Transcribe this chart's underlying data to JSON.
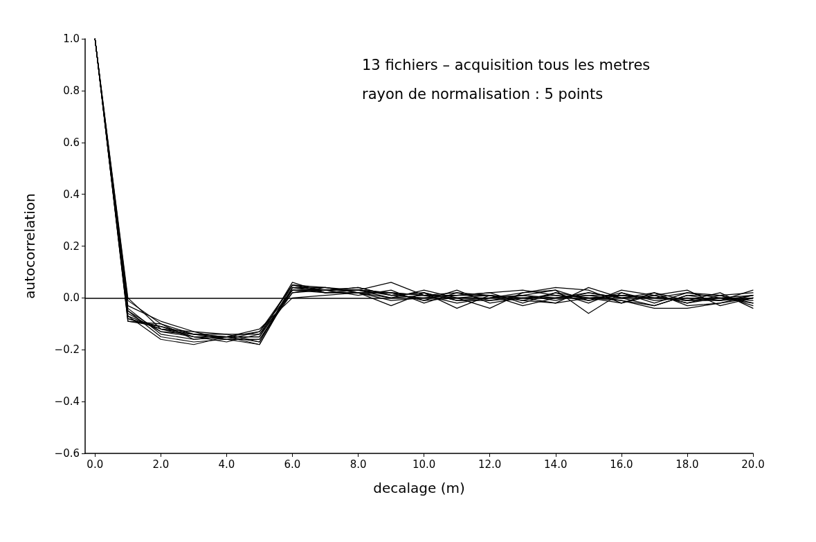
{
  "chart_data": {
    "type": "line",
    "xlabel": "decalage (m)",
    "ylabel": "autocorrelation",
    "annotations": [
      "13 fichiers – acquisition tous les metres",
      "rayon de normalisation : 5 points"
    ],
    "x": [
      0,
      1,
      2,
      3,
      4,
      5,
      6,
      7,
      8,
      9,
      10,
      11,
      12,
      13,
      14,
      15,
      16,
      17,
      18,
      19,
      20
    ],
    "xlim": [
      -0.3,
      20
    ],
    "xticks": [
      {
        "value": 0,
        "label": "0.0"
      },
      {
        "value": 2,
        "label": "2.0"
      },
      {
        "value": 4,
        "label": "4.0"
      },
      {
        "value": 6,
        "label": "6.0"
      },
      {
        "value": 8,
        "label": "8.0"
      },
      {
        "value": 10,
        "label": "10.0"
      },
      {
        "value": 12,
        "label": "12.0"
      },
      {
        "value": 14,
        "label": "14.0"
      },
      {
        "value": 16,
        "label": "16.0"
      },
      {
        "value": 18,
        "label": "18.0"
      },
      {
        "value": 20,
        "label": "20.0"
      }
    ],
    "ylim": [
      -0.6,
      1.0
    ],
    "yticks": [
      {
        "value": -0.6,
        "label": "−0.6"
      },
      {
        "value": -0.4,
        "label": "−0.4"
      },
      {
        "value": -0.2,
        "label": "−0.2"
      },
      {
        "value": 0,
        "label": "0.0"
      },
      {
        "value": 0.2,
        "label": "0.2"
      },
      {
        "value": 0.4,
        "label": "0.4"
      },
      {
        "value": 0.6,
        "label": "0.6"
      },
      {
        "value": 0.8,
        "label": "0.8"
      },
      {
        "value": 1.0,
        "label": "1.0"
      }
    ],
    "ref_lines": [
      {
        "axis": "y",
        "value": 0,
        "color": "#000000"
      }
    ],
    "grid": false,
    "marker": "none",
    "line_style": "solid",
    "series": [
      {
        "color": "#000000",
        "values": [
          1.0,
          -0.09,
          -0.11,
          -0.14,
          -0.15,
          -0.17,
          0.05,
          0.03,
          0.03,
          0.02,
          0.01,
          0.0,
          0.01,
          0.0,
          0.01,
          0.0,
          0.01,
          0.0,
          -0.01,
          0.0,
          0.01
        ]
      },
      {
        "color": "#000000",
        "values": [
          1.0,
          -0.08,
          -0.12,
          -0.15,
          -0.16,
          -0.18,
          0.04,
          0.04,
          0.02,
          -0.03,
          0.02,
          -0.01,
          0.0,
          0.02,
          0.03,
          -0.06,
          0.02,
          -0.01,
          0.0,
          -0.01,
          0.0
        ]
      },
      {
        "color": "#000000",
        "values": [
          1.0,
          -0.07,
          -0.16,
          -0.18,
          -0.15,
          -0.13,
          0.03,
          0.02,
          0.03,
          0.06,
          0.01,
          0.02,
          -0.01,
          0.01,
          0.0,
          0.02,
          0.0,
          0.01,
          -0.02,
          0.0,
          -0.02
        ]
      },
      {
        "color": "#000000",
        "values": [
          1.0,
          -0.05,
          -0.15,
          -0.17,
          -0.16,
          -0.16,
          0.02,
          0.03,
          0.04,
          0.01,
          0.02,
          -0.04,
          0.01,
          -0.01,
          0.02,
          0.0,
          -0.01,
          -0.03,
          0.01,
          0.01,
          0.02
        ]
      },
      {
        "color": "#000000",
        "values": [
          1.0,
          -0.04,
          -0.14,
          -0.16,
          -0.15,
          -0.12,
          0.0,
          0.01,
          0.02,
          0.02,
          -0.01,
          0.03,
          -0.02,
          0.0,
          -0.02,
          0.04,
          0.0,
          0.02,
          -0.03,
          -0.02,
          0.01
        ]
      },
      {
        "color": "#000000",
        "values": [
          1.0,
          -0.03,
          -0.09,
          -0.13,
          -0.14,
          -0.14,
          0.05,
          0.04,
          0.03,
          0.01,
          0.0,
          0.01,
          0.02,
          0.03,
          0.01,
          -0.01,
          0.02,
          -0.02,
          0.02,
          0.0,
          -0.01
        ]
      },
      {
        "color": "#000000",
        "values": [
          1.0,
          -0.01,
          -0.1,
          -0.14,
          -0.15,
          -0.15,
          0.06,
          0.02,
          0.02,
          0.0,
          0.03,
          0.0,
          -0.04,
          0.02,
          0.04,
          0.03,
          -0.02,
          0.01,
          0.03,
          -0.03,
          0.0
        ]
      },
      {
        "color": "#000000",
        "values": [
          1.0,
          0.0,
          -0.12,
          -0.13,
          -0.16,
          -0.16,
          0.03,
          0.03,
          0.01,
          0.03,
          -0.02,
          0.02,
          0.01,
          -0.03,
          0.0,
          0.01,
          0.01,
          0.0,
          -0.01,
          0.02,
          -0.04
        ]
      },
      {
        "color": "#000000",
        "values": [
          1.0,
          -0.06,
          -0.13,
          -0.14,
          -0.14,
          -0.17,
          0.04,
          0.02,
          0.03,
          0.02,
          0.01,
          -0.02,
          0.0,
          0.01,
          -0.01,
          0.02,
          0.0,
          -0.03,
          0.01,
          -0.01,
          0.03
        ]
      },
      {
        "color": "#000000",
        "values": [
          1.0,
          -0.08,
          -0.11,
          -0.15,
          -0.17,
          -0.14,
          0.02,
          0.04,
          0.02,
          -0.01,
          0.0,
          0.01,
          0.02,
          -0.02,
          0.02,
          -0.02,
          0.03,
          0.01,
          -0.02,
          0.01,
          -0.02
        ]
      },
      {
        "color": "#000000",
        "values": [
          1.0,
          -0.09,
          -0.1,
          -0.16,
          -0.15,
          -0.18,
          0.04,
          0.03,
          0.04,
          0.01,
          0.02,
          -0.01,
          -0.01,
          0.0,
          0.0,
          0.01,
          -0.01,
          -0.04,
          -0.04,
          -0.02,
          0.0
        ]
      },
      {
        "color": "#000000",
        "values": [
          1.0,
          -0.07,
          -0.12,
          -0.14,
          -0.16,
          -0.13,
          0.05,
          0.02,
          0.02,
          0.02,
          -0.01,
          0.0,
          0.0,
          0.01,
          0.03,
          -0.01,
          0.01,
          0.0,
          0.02,
          0.01,
          -0.03
        ]
      },
      {
        "color": "#000000",
        "values": [
          1.0,
          -0.05,
          -0.13,
          -0.15,
          -0.15,
          -0.15,
          0.03,
          0.03,
          0.03,
          0.0,
          0.01,
          0.01,
          0.01,
          -0.01,
          -0.02,
          0.0,
          -0.02,
          0.02,
          -0.01,
          -0.01,
          0.01
        ]
      }
    ]
  }
}
